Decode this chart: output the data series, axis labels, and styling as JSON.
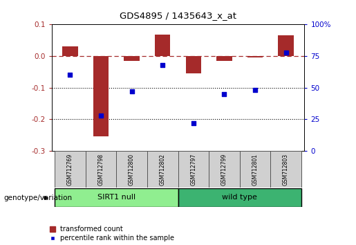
{
  "title": "GDS4895 / 1435643_x_at",
  "samples": [
    "GSM712769",
    "GSM712798",
    "GSM712800",
    "GSM712802",
    "GSM712797",
    "GSM712799",
    "GSM712801",
    "GSM712803"
  ],
  "group_labels": [
    "SIRT1 null",
    "wild type"
  ],
  "group_colors": [
    "#90EE90",
    "#3CB371"
  ],
  "group_split": 4,
  "transformed_count": [
    0.03,
    -0.255,
    -0.015,
    0.068,
    -0.055,
    -0.015,
    -0.005,
    0.065
  ],
  "percentile_rank": [
    60,
    28,
    47,
    68,
    22,
    45,
    48,
    78
  ],
  "ylim_left": [
    -0.3,
    0.1
  ],
  "ylim_right": [
    0,
    100
  ],
  "yticks_left": [
    -0.3,
    -0.2,
    -0.1,
    0.0,
    0.1
  ],
  "yticks_right": [
    0,
    25,
    50,
    75,
    100
  ],
  "ytick_labels_right": [
    "0",
    "25",
    "50",
    "75",
    "100%"
  ],
  "bar_color": "#A52A2A",
  "point_color": "#0000CD",
  "dotted_hlines": [
    -0.1,
    -0.2
  ],
  "legend_bar_label": "transformed count",
  "legend_point_label": "percentile rank within the sample",
  "genotype_label": "genotype/variation",
  "fig_width": 5.15,
  "fig_height": 3.54,
  "dpi": 100
}
